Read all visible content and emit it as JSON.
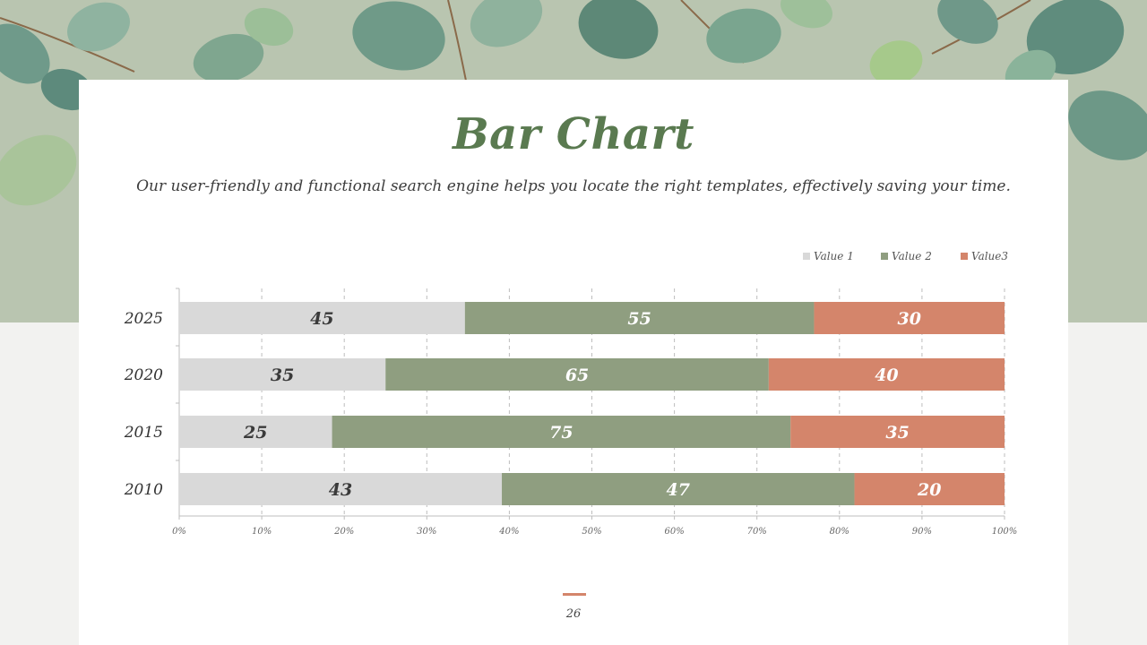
{
  "slide": {
    "title": "Bar Chart",
    "subtitle": "Our user-friendly and functional search engine helps you locate the right templates, effectively saving your time.",
    "page_number": "26"
  },
  "colors": {
    "accent": "#5a7a50",
    "value1": "#d9d9d9",
    "value2": "#8f9e80",
    "value3": "#d4856b",
    "page_bar": "#d4856b"
  },
  "chart_data": {
    "type": "bar",
    "orientation": "horizontal",
    "stacked": "percent",
    "title": "",
    "xlabel": "",
    "ylabel": "",
    "categories": [
      "2025",
      "2020",
      "2015",
      "2010"
    ],
    "series": [
      {
        "name": "Value 1",
        "values": [
          45,
          35,
          25,
          43
        ]
      },
      {
        "name": "Value 2",
        "values": [
          55,
          65,
          75,
          47
        ]
      },
      {
        "name": "Value3",
        "values": [
          30,
          40,
          35,
          20
        ]
      }
    ],
    "x_ticks": [
      "0%",
      "10%",
      "20%",
      "30%",
      "40%",
      "50%",
      "60%",
      "70%",
      "80%",
      "90%",
      "100%"
    ],
    "xlim": [
      0,
      100
    ],
    "grid": "vertical dashed",
    "legend_position": "top-right"
  }
}
